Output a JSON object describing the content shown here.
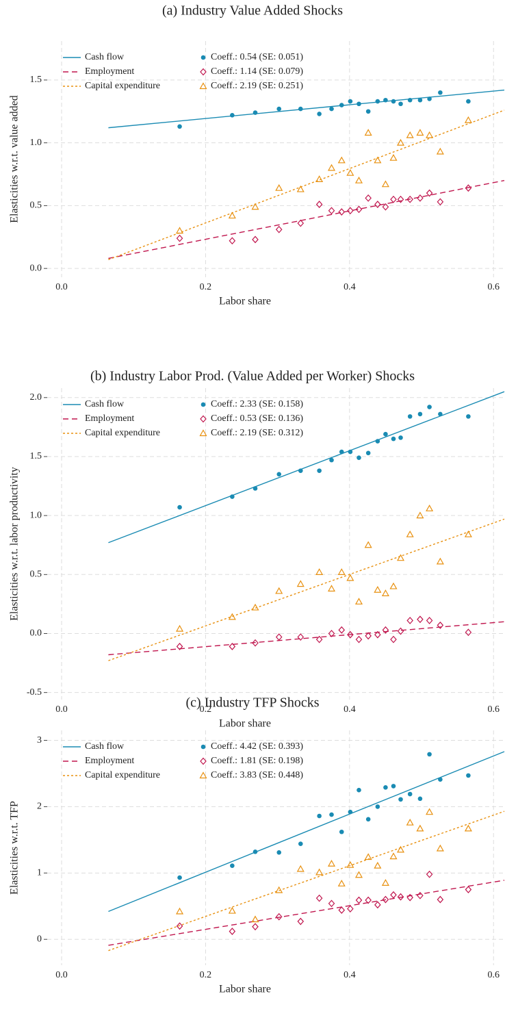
{
  "chart_data": [
    {
      "type": "scatter",
      "title": "(a) Industry Value Added Shocks",
      "xlabel": "Labor share",
      "ylabel": "Elasticities w.r.t. value added",
      "grid": true,
      "xlim": [
        -0.02,
        0.615
      ],
      "ylim": [
        -0.07,
        1.81
      ],
      "xticks": [
        {
          "value": 0,
          "label": "0.0"
        },
        0.2,
        0.4,
        0.6
      ],
      "yticks": [
        {
          "value": 0,
          "label": "0.0"
        },
        0.5,
        {
          "value": 1,
          "label": "1.0"
        },
        1.5
      ],
      "x": [
        0.164,
        0.237,
        0.269,
        0.302,
        0.332,
        0.358,
        0.375,
        0.389,
        0.401,
        0.413,
        0.426,
        0.439,
        0.45,
        0.461,
        0.471,
        0.484,
        0.498,
        0.511,
        0.526,
        0.565
      ],
      "fit_x": [
        0.065,
        0.615
      ],
      "series": [
        {
          "name": "Cash flow",
          "color": "#1a8bb3",
          "marker": "circle",
          "dash": "solid",
          "label": "Coeff.: 0.54 (SE: 0.051)",
          "values": [
            1.13,
            1.22,
            1.24,
            1.27,
            1.27,
            1.23,
            1.27,
            1.3,
            1.33,
            1.31,
            1.25,
            1.33,
            1.34,
            1.33,
            1.31,
            1.34,
            1.34,
            1.35,
            1.4,
            1.33
          ],
          "fit": [
            1.12,
            1.42
          ]
        },
        {
          "name": "Employment",
          "color": "#c0154d",
          "marker": "diamond",
          "dash": "dashed",
          "label": "Coeff.: 1.14 (SE: 0.079)",
          "values": [
            0.24,
            0.22,
            0.23,
            0.31,
            0.36,
            0.51,
            0.46,
            0.45,
            0.46,
            0.47,
            0.56,
            0.51,
            0.49,
            0.55,
            0.55,
            0.55,
            0.56,
            0.6,
            0.53,
            0.64
          ],
          "fit": [
            0.08,
            0.7
          ]
        },
        {
          "name": "Capital expenditure",
          "color": "#e8900f",
          "marker": "triangle",
          "dash": "dotted",
          "label": "Coeff.: 2.19 (SE: 0.251)",
          "values": [
            0.3,
            0.42,
            0.49,
            0.64,
            0.63,
            0.71,
            0.8,
            0.86,
            0.76,
            0.7,
            1.08,
            0.86,
            0.67,
            0.88,
            1.0,
            1.06,
            1.08,
            1.06,
            0.93,
            1.18
          ],
          "fit": [
            0.07,
            1.26
          ]
        }
      ]
    },
    {
      "type": "scatter",
      "title": "(b) Industry Labor Prod. (Value Added per Worker) Shocks",
      "xlabel": "Labor share",
      "ylabel": "Elasticities w.r.t. labor productivity",
      "grid": true,
      "xlim": [
        -0.02,
        0.615
      ],
      "ylim": [
        -0.56,
        2.08
      ],
      "xticks": [
        {
          "value": 0,
          "label": "0.0"
        },
        0.2,
        0.4,
        0.6
      ],
      "yticks": [
        -0.5,
        {
          "value": 0,
          "label": "0.0"
        },
        0.5,
        {
          "value": 1,
          "label": "1.0"
        },
        1.5,
        {
          "value": 2,
          "label": "2.0"
        }
      ],
      "x": [
        0.164,
        0.237,
        0.269,
        0.302,
        0.332,
        0.358,
        0.375,
        0.389,
        0.401,
        0.413,
        0.426,
        0.439,
        0.45,
        0.461,
        0.471,
        0.484,
        0.498,
        0.511,
        0.526,
        0.565
      ],
      "fit_x": [
        0.065,
        0.615
      ],
      "series": [
        {
          "name": "Cash flow",
          "color": "#1a8bb3",
          "marker": "circle",
          "dash": "solid",
          "label": "Coeff.: 2.33 (SE: 0.158)",
          "values": [
            1.07,
            1.16,
            1.23,
            1.35,
            1.38,
            1.38,
            1.47,
            1.54,
            1.54,
            1.49,
            1.53,
            1.63,
            1.69,
            1.65,
            1.66,
            1.84,
            1.86,
            1.92,
            1.86,
            1.84
          ],
          "fit": [
            0.77,
            2.05
          ]
        },
        {
          "name": "Employment",
          "color": "#c0154d",
          "marker": "diamond",
          "dash": "dashed",
          "label": "Coeff.: 0.53 (SE: 0.136)",
          "values": [
            -0.11,
            -0.11,
            -0.08,
            -0.03,
            -0.03,
            -0.05,
            0.0,
            0.03,
            -0.01,
            -0.05,
            -0.02,
            -0.01,
            0.03,
            -0.05,
            0.02,
            0.11,
            0.12,
            0.11,
            0.07,
            0.01
          ],
          "fit": [
            -0.18,
            0.1
          ]
        },
        {
          "name": "Capital expenditure",
          "color": "#e8900f",
          "marker": "triangle",
          "dash": "dotted",
          "label": "Coeff.: 2.19 (SE: 0.312)",
          "values": [
            0.04,
            0.14,
            0.22,
            0.36,
            0.42,
            0.52,
            0.38,
            0.52,
            0.47,
            0.27,
            0.75,
            0.37,
            0.34,
            0.4,
            0.64,
            0.84,
            1.0,
            1.06,
            0.61,
            0.84
          ],
          "fit": [
            -0.23,
            0.97
          ]
        }
      ]
    },
    {
      "type": "scatter",
      "title": "(c) Industry TFP Shocks",
      "xlabel": "Labor share",
      "ylabel": "Elasticities w.r.t. TFP",
      "grid": true,
      "xlim": [
        -0.02,
        0.615
      ],
      "ylim": [
        -0.39,
        3.15
      ],
      "xticks": [
        {
          "value": 0,
          "label": "0.0"
        },
        0.2,
        0.4,
        0.6
      ],
      "yticks": [
        0,
        1,
        2,
        3
      ],
      "x": [
        0.164,
        0.237,
        0.269,
        0.302,
        0.332,
        0.358,
        0.375,
        0.389,
        0.401,
        0.413,
        0.426,
        0.439,
        0.45,
        0.461,
        0.471,
        0.484,
        0.498,
        0.511,
        0.526,
        0.565
      ],
      "fit_x": [
        0.065,
        0.615
      ],
      "series": [
        {
          "name": "Cash flow",
          "color": "#1a8bb3",
          "marker": "circle",
          "dash": "solid",
          "label": "Coeff.: 4.42 (SE: 0.393)",
          "values": [
            0.93,
            1.11,
            1.32,
            1.31,
            1.44,
            1.86,
            1.88,
            1.62,
            1.92,
            2.25,
            1.81,
            2.0,
            2.29,
            2.31,
            2.11,
            2.19,
            2.12,
            2.79,
            2.41,
            2.47
          ],
          "fit": [
            0.42,
            2.83
          ]
        },
        {
          "name": "Employment",
          "color": "#c0154d",
          "marker": "diamond",
          "dash": "dashed",
          "label": "Coeff.: 1.81 (SE: 0.198)",
          "values": [
            0.2,
            0.12,
            0.19,
            0.34,
            0.27,
            0.62,
            0.54,
            0.44,
            0.46,
            0.59,
            0.59,
            0.52,
            0.6,
            0.67,
            0.64,
            0.63,
            0.66,
            0.98,
            0.6,
            0.75
          ],
          "fit": [
            -0.09,
            0.89
          ]
        },
        {
          "name": "Capital expenditure",
          "color": "#e8900f",
          "marker": "triangle",
          "dash": "dotted",
          "label": "Coeff.: 3.83 (SE: 0.448)",
          "values": [
            0.42,
            0.43,
            0.3,
            0.74,
            1.06,
            1.01,
            1.14,
            0.84,
            1.12,
            0.97,
            1.24,
            1.11,
            0.85,
            1.25,
            1.35,
            1.76,
            1.67,
            1.92,
            1.37,
            1.67
          ],
          "fit": [
            -0.17,
            1.93
          ]
        }
      ]
    }
  ]
}
